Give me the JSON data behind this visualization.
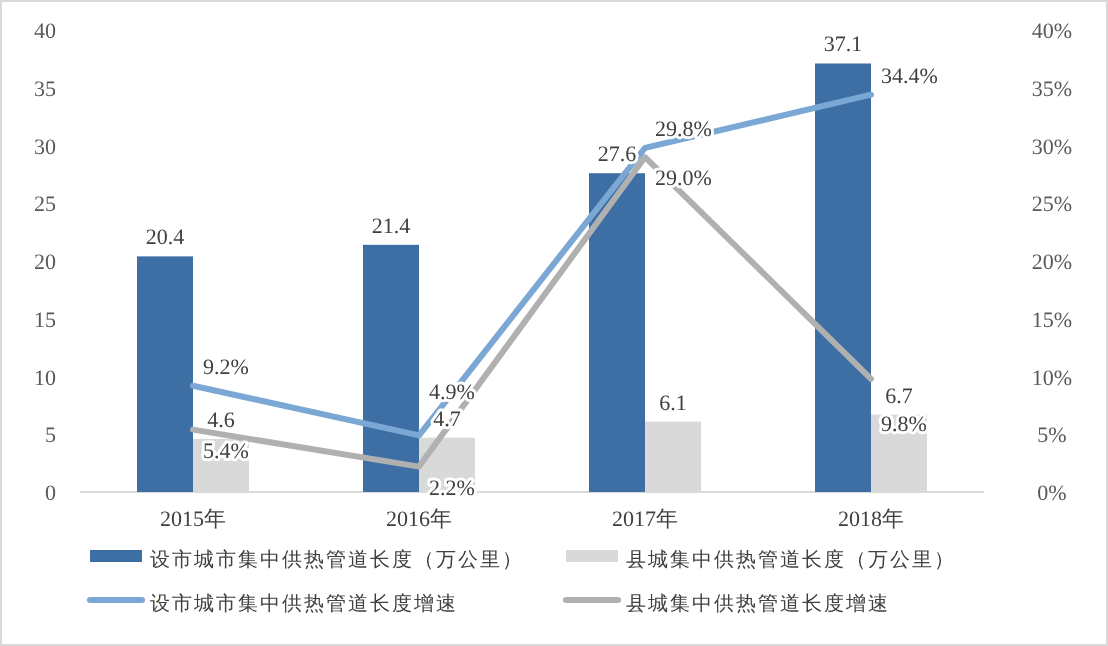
{
  "chart_data": {
    "type": "bar",
    "categories": [
      "2015年",
      "2016年",
      "2017年",
      "2018年"
    ],
    "ylim": [
      0,
      40
    ],
    "yticks": [
      0,
      5,
      10,
      15,
      20,
      25,
      30,
      35,
      40
    ],
    "y2lim": [
      0,
      40
    ],
    "y2ticks": [
      {
        "value": 0,
        "label": "0%"
      },
      {
        "value": 5,
        "label": "5%"
      },
      {
        "value": 10,
        "label": "10%"
      },
      {
        "value": 15,
        "label": "15%"
      },
      {
        "value": 20,
        "label": "20%"
      },
      {
        "value": 25,
        "label": "25%"
      },
      {
        "value": 30,
        "label": "30%"
      },
      {
        "value": 35,
        "label": "35%"
      },
      {
        "value": 40,
        "label": "40%"
      }
    ],
    "legend": "bottom",
    "grid": false,
    "series": [
      {
        "name": "设市城市集中供热管道长度（万公里）",
        "color": "#3d6fa5",
        "values": [
          20.4,
          21.4,
          27.6,
          37.1
        ],
        "value_labels": [
          "20.4",
          "21.4",
          "27.6",
          "37.1"
        ]
      },
      {
        "name": "县城集中供热管道长度（万公里）",
        "color": "#d9d9d9",
        "values": [
          4.6,
          4.7,
          6.1,
          6.7
        ],
        "value_labels": [
          "4.6",
          "4.7",
          "6.1",
          "6.7"
        ]
      },
      {
        "name": "设市城市集中供热管道长度增速",
        "type": "line",
        "axis": "y2",
        "color": "#7ba7d4",
        "values": [
          9.2,
          4.9,
          29.8,
          34.4
        ],
        "value_labels": [
          "9.2%",
          "4.9%",
          "29.8%",
          "34.4%"
        ]
      },
      {
        "name": "县城集中供热管道长度增速",
        "type": "line",
        "axis": "y2",
        "color": "#b0b0b0",
        "values": [
          5.4,
          2.2,
          29.0,
          9.8
        ],
        "value_labels": [
          "5.4%",
          "2.2%",
          "29.0%",
          "9.8%"
        ]
      }
    ]
  }
}
